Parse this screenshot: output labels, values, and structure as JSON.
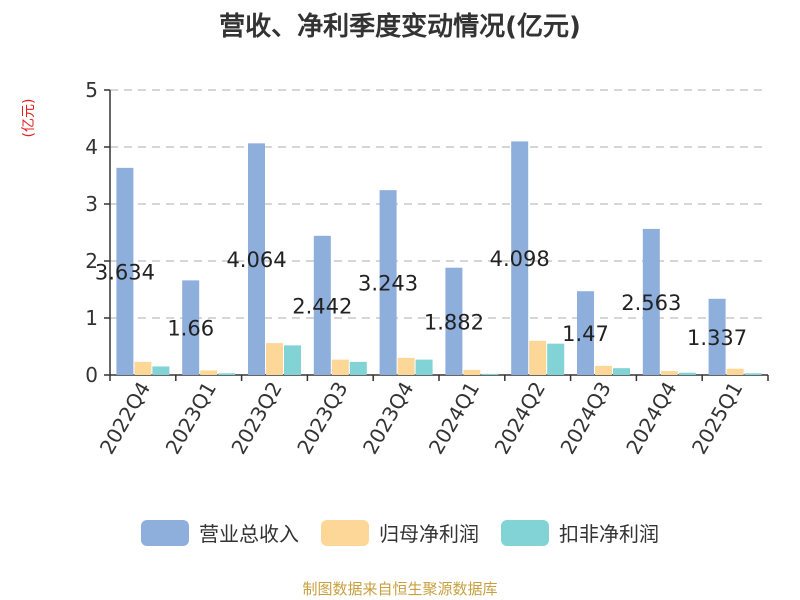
{
  "chart_data": {
    "type": "bar",
    "title": "营收、净利季度变动情况(亿元)",
    "unit_label": "(亿元)",
    "categories": [
      "2022Q4",
      "2023Q1",
      "2023Q2",
      "2023Q3",
      "2023Q4",
      "2024Q1",
      "2024Q2",
      "2024Q3",
      "2024Q4",
      "2025Q1"
    ],
    "ylim": [
      0,
      5
    ],
    "yticks": [
      "0",
      "1",
      "2",
      "3",
      "4",
      "5"
    ],
    "grid": true,
    "legend_position": "bottom",
    "series": [
      {
        "name": "营业总收入",
        "color": "#8eaedc",
        "values": [
          3.634,
          1.66,
          4.064,
          2.442,
          3.243,
          1.882,
          4.098,
          1.47,
          2.563,
          1.337
        ],
        "labels": [
          "3.634",
          "1.66",
          "4.064",
          "2.442",
          "3.243",
          "1.882",
          "4.098",
          "1.47",
          "2.563",
          "1.337"
        ]
      },
      {
        "name": "归母净利润",
        "color": "#fdd797",
        "values": [
          0.23,
          0.08,
          0.56,
          0.27,
          0.3,
          0.09,
          0.6,
          0.16,
          0.07,
          0.11
        ]
      },
      {
        "name": "扣非净利润",
        "color": "#82d3d6",
        "values": [
          0.15,
          0.03,
          0.52,
          0.23,
          0.27,
          0.02,
          0.55,
          0.12,
          0.04,
          0.03
        ]
      }
    ]
  },
  "source": "制图数据来自恒生聚源数据库"
}
